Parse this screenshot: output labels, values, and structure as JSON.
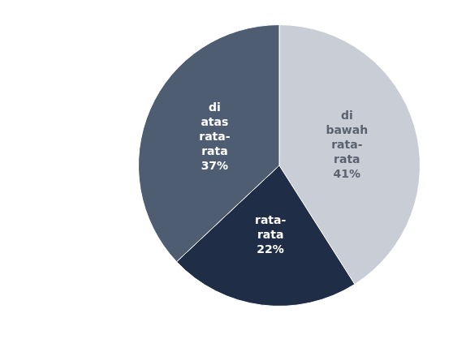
{
  "chart_data": {
    "type": "pie",
    "categories": [
      "di bawah rata-rata",
      "rata-rata",
      "di atas rata-rata"
    ],
    "values": [
      41,
      22,
      37
    ],
    "value_labels": [
      "41%",
      "22%",
      "37%"
    ],
    "colors": [
      "#c9ced6",
      "#1f2d47",
      "#4f5d72"
    ],
    "data_labels": true
  }
}
